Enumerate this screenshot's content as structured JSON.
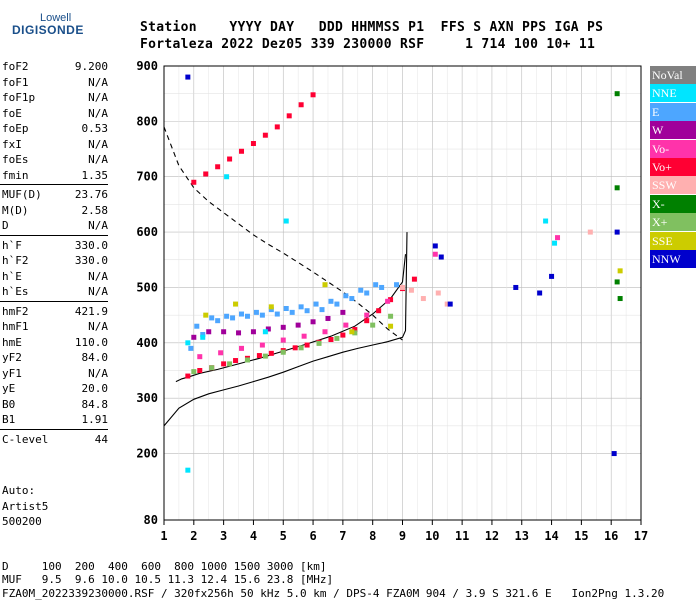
{
  "logo": {
    "top": "Lowell",
    "main": "DIGISONDE"
  },
  "header": {
    "row1": "Station    YYYY DAY   DDD HHMMSS P1  FFS S AXN PPS IGA PS",
    "row2": "Fortaleza 2022 Dez05 339 230000 RSF     1 714 100 10+ 11"
  },
  "params": [
    {
      "name": "foF2",
      "value": "9.200"
    },
    {
      "name": "foF1",
      "value": "N/A"
    },
    {
      "name": "foF1p",
      "value": "N/A"
    },
    {
      "name": "foE",
      "value": "N/A"
    },
    {
      "name": "foEp",
      "value": "0.53"
    },
    {
      "name": "fxI",
      "value": "N/A"
    },
    {
      "name": "foEs",
      "value": "N/A"
    },
    {
      "name": "fmin",
      "value": "1.35"
    },
    {
      "name": "MUF(D)",
      "value": "23.76"
    },
    {
      "name": "M(D)",
      "value": "2.58"
    },
    {
      "name": "D",
      "value": "N/A"
    },
    {
      "name": "h`F",
      "value": "330.0"
    },
    {
      "name": "h`F2",
      "value": "330.0"
    },
    {
      "name": "h`E",
      "value": "N/A"
    },
    {
      "name": "h`Es",
      "value": "N/A"
    },
    {
      "name": "hmF2",
      "value": "421.9"
    },
    {
      "name": "hmF1",
      "value": "N/A"
    },
    {
      "name": "hmE",
      "value": "110.0"
    },
    {
      "name": "yF2",
      "value": "84.0"
    },
    {
      "name": "yF1",
      "value": "N/A"
    },
    {
      "name": "yE",
      "value": "20.0"
    },
    {
      "name": "B0",
      "value": "84.8"
    },
    {
      "name": "B1",
      "value": "1.91"
    },
    {
      "name": "C-level",
      "value": "44"
    }
  ],
  "auto": {
    "line1": "Auto:",
    "line2": "Artist5",
    "line3": "500200"
  },
  "legend": [
    {
      "label": "NoVal",
      "color": "#808080"
    },
    {
      "label": "NNE",
      "color": "#00e5ff"
    },
    {
      "label": "E",
      "color": "#4da6ff"
    },
    {
      "label": "W",
      "color": "#a0009a"
    },
    {
      "label": "Vo-",
      "color": "#ff33aa"
    },
    {
      "label": "Vo+",
      "color": "#ff0033"
    },
    {
      "label": "SSW",
      "color": "#ffb0b0"
    },
    {
      "label": "X-",
      "color": "#008000"
    },
    {
      "label": "X+",
      "color": "#80c060"
    },
    {
      "label": "SSE",
      "color": "#cccc00"
    },
    {
      "label": "NNW",
      "color": "#0000cc"
    }
  ],
  "bottom": {
    "line1": "D     100  200  400  600  800 1000 1500 3000 [km]",
    "line2": "MUF   9.5  9.6 10.0 10.5 11.3 12.4 15.6 23.8 [MHz]",
    "line3": "FZA0M_2022339230000.RSF / 320fx256h 50 kHz 5.0 km / DPS-4 FZA0M 904 / 3.9 S 321.6 E   Ion2Png 1.3.20"
  },
  "chart_data": {
    "type": "scatter",
    "xlim": [
      1,
      17
    ],
    "ylim": [
      80,
      900
    ],
    "x_ticks": [
      1,
      2,
      3,
      4,
      5,
      6,
      7,
      8,
      9,
      10,
      11,
      12,
      13,
      14,
      15,
      16,
      17
    ],
    "y_ticks": [
      80,
      200,
      300,
      400,
      500,
      600,
      700,
      800,
      900
    ],
    "grid": true,
    "series": [
      {
        "name": "E",
        "x": [
          1.9,
          2.3,
          2.8,
          3.3,
          3.8,
          4.3,
          4.8,
          5.3,
          5.8,
          6.3,
          6.8,
          7.3,
          7.8,
          8.3,
          8.8,
          2.1,
          2.6,
          3.1,
          3.6,
          4.1,
          4.6,
          5.1,
          5.6,
          6.1,
          6.6,
          7.1,
          7.6,
          8.1
        ],
        "y": [
          390,
          415,
          440,
          445,
          448,
          450,
          452,
          455,
          458,
          460,
          470,
          480,
          490,
          500,
          505,
          430,
          445,
          448,
          452,
          455,
          460,
          462,
          465,
          470,
          475,
          485,
          495,
          505
        ]
      },
      {
        "name": "Vo+",
        "x": [
          1.8,
          2.2,
          2.6,
          3.0,
          3.4,
          3.8,
          4.2,
          4.6,
          5.0,
          5.4,
          5.8,
          6.2,
          6.6,
          7.0,
          7.4,
          7.8,
          8.2,
          8.6,
          9.0,
          9.4,
          2.0,
          2.4,
          2.8,
          3.2,
          3.6,
          4.0,
          4.4,
          4.8,
          5.2,
          5.6,
          6.0
        ],
        "y": [
          340,
          350,
          355,
          362,
          368,
          372,
          377,
          381,
          386,
          391,
          396,
          401,
          406,
          414,
          424,
          440,
          458,
          478,
          498,
          515,
          690,
          705,
          718,
          732,
          746,
          760,
          775,
          790,
          810,
          830,
          848
        ]
      },
      {
        "name": "W",
        "x": [
          2.0,
          2.5,
          3.0,
          3.5,
          4.0,
          4.5,
          5.0,
          5.5,
          6.0,
          6.5,
          7.0
        ],
        "y": [
          410,
          420,
          420,
          418,
          420,
          425,
          428,
          432,
          438,
          444,
          455
        ]
      },
      {
        "name": "Vo-",
        "x": [
          2.2,
          2.9,
          3.6,
          4.3,
          5.0,
          5.7,
          6.4,
          7.1,
          7.8,
          8.5,
          10.1,
          14.2
        ],
        "y": [
          375,
          382,
          390,
          396,
          405,
          412,
          420,
          432,
          450,
          475,
          560,
          590
        ]
      },
      {
        "name": "X+",
        "x": [
          2.0,
          2.6,
          3.2,
          3.8,
          4.4,
          5.0,
          5.6,
          6.2,
          6.8,
          7.4,
          8.0,
          8.6
        ],
        "y": [
          348,
          355,
          362,
          369,
          376,
          383,
          391,
          399,
          408,
          418,
          432,
          448
        ]
      },
      {
        "name": "SSE",
        "x": [
          2.4,
          3.4,
          4.6,
          6.4,
          7.3,
          8.6,
          16.3
        ],
        "y": [
          450,
          470,
          465,
          505,
          420,
          430,
          530
        ]
      },
      {
        "name": "SSW",
        "x": [
          9.0,
          9.3,
          9.7,
          10.2,
          10.5,
          15.3
        ],
        "y": [
          500,
          495,
          480,
          490,
          470,
          600
        ]
      },
      {
        "name": "NNE",
        "x": [
          1.8,
          1.8,
          2.3,
          3.1,
          4.4,
          5.1,
          13.8,
          14.1
        ],
        "y": [
          170,
          400,
          410,
          700,
          420,
          620,
          620,
          580
        ]
      },
      {
        "name": "NNW",
        "x": [
          10.1,
          10.3,
          10.6,
          12.8,
          13.6,
          14.0,
          16.2,
          16.1,
          1.8
        ],
        "y": [
          575,
          555,
          470,
          500,
          490,
          520,
          600,
          200,
          880
        ]
      },
      {
        "name": "X-",
        "x": [
          16.2,
          16.2,
          16.2,
          16.3
        ],
        "y": [
          850,
          680,
          510,
          480
        ]
      }
    ],
    "curves": [
      {
        "style": "dashed",
        "x": [
          1.0,
          1.5,
          2.0,
          2.5,
          3.0,
          3.5,
          4.0,
          4.5,
          5.0,
          5.5,
          6.0,
          6.5,
          7.0,
          7.5,
          8.0,
          8.5,
          9.0
        ],
        "y": [
          790,
          720,
          680,
          655,
          635,
          615,
          595,
          578,
          562,
          545,
          528,
          510,
          492,
          472,
          450,
          425,
          405
        ]
      },
      {
        "style": "solid",
        "x": [
          1.0,
          1.5,
          2.0,
          2.5,
          3.0,
          3.5,
          4.0,
          4.5,
          5.0,
          5.5,
          6.0,
          6.5,
          7.0,
          7.5,
          8.0,
          8.5,
          9.0,
          9.1,
          9.15
        ],
        "y": [
          250,
          282,
          298,
          308,
          315,
          322,
          330,
          338,
          347,
          357,
          367,
          375,
          383,
          390,
          396,
          402,
          410,
          422,
          600
        ]
      },
      {
        "style": "solid",
        "x": [
          1.4,
          1.6,
          1.8,
          2.2,
          2.8,
          3.5,
          4.2,
          5.0,
          5.8,
          6.6,
          7.4,
          8.0,
          8.6,
          9.0,
          9.1
        ],
        "y": [
          330,
          335,
          338,
          345,
          352,
          362,
          372,
          385,
          398,
          412,
          430,
          452,
          480,
          510,
          560
        ]
      }
    ]
  }
}
